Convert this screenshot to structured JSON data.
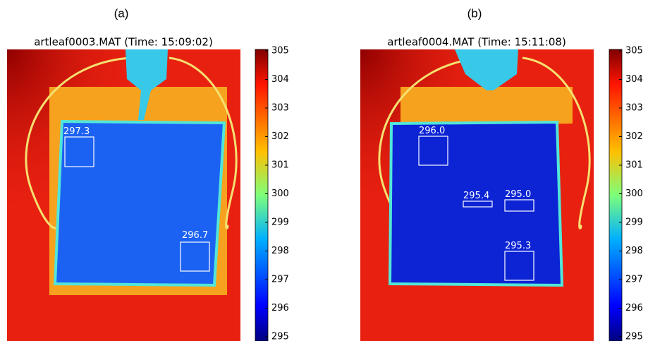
{
  "panels": [
    {
      "label": "(a)",
      "title": "artleaf0003.MAT (Time: 15:09:02)",
      "annotations": [
        "297.3",
        "296.7"
      ],
      "colorbar_ticks": [
        305,
        304,
        303,
        302,
        301,
        300,
        299,
        298,
        297,
        296,
        295
      ]
    },
    {
      "label": "(b)",
      "title": "artleaf0004.MAT (Time: 15:11:08)",
      "annotations": [
        "296.0",
        "295.4",
        "295.0",
        "295.3"
      ],
      "colorbar_ticks": [
        305,
        304,
        303,
        302,
        301,
        300,
        299,
        298,
        297,
        296,
        295
      ]
    }
  ]
}
